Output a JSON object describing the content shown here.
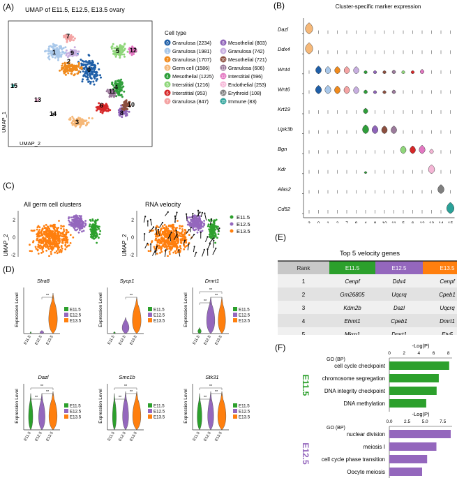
{
  "panel_labels": {
    "a": "(A)",
    "b": "(B)",
    "c": "(C)",
    "d": "(D)",
    "e": "(E)",
    "f": "(F)"
  },
  "umap": {
    "title": "UMAP of  E11.5, E12.5, E13.5  ovary",
    "xlabel": "UMAP_2",
    "ylabel": "UMAP_1",
    "legend_title": "Cell type",
    "legend": [
      {
        "id": "0",
        "label": "Granulosa (2234)",
        "color": "#1f5fa8"
      },
      {
        "id": "1",
        "label": "Granulosa (1981)",
        "color": "#a9c8ea"
      },
      {
        "id": "2",
        "label": "Granulosa (1707)",
        "color": "#f08a1c"
      },
      {
        "id": "3",
        "label": "Germ cell (1586)",
        "color": "#f6b878"
      },
      {
        "id": "4",
        "label": "Mesothelial (1225)",
        "color": "#2e9e3a"
      },
      {
        "id": "5",
        "label": "Interstitial (1216)",
        "color": "#8fd67a"
      },
      {
        "id": "6",
        "label": "Interstitial (953)",
        "color": "#d62728"
      },
      {
        "id": "7",
        "label": "Granulosa (847)",
        "color": "#f4a3a3"
      },
      {
        "id": "8",
        "label": "Mesothelial (803)",
        "color": "#8e63b8"
      },
      {
        "id": "9",
        "label": "Granulosa (742)",
        "color": "#c7aee0"
      },
      {
        "id": "10",
        "label": "Mesothelial (721)",
        "color": "#8c4f3f"
      },
      {
        "id": "11",
        "label": "Granulosa (606)",
        "color": "#9b7a9b"
      },
      {
        "id": "12",
        "label": "Interstitial (596)",
        "color": "#e377c2"
      },
      {
        "id": "13",
        "label": "Endothelial (253)",
        "color": "#f5b6d6"
      },
      {
        "id": "14",
        "label": "Erythroid (108)",
        "color": "#7f7f7f"
      },
      {
        "id": "15",
        "label": "Immune (83)",
        "color": "#2aa198"
      }
    ]
  },
  "markers": {
    "title": "Cluster-specific marker expression",
    "genes": [
      "Dazl",
      "Ddx4",
      "Wnt4",
      "Wnt6",
      "Krt19",
      "Upk3b",
      "Bgn",
      "Kdr",
      "Alas2",
      "Cd52"
    ],
    "clusters": [
      "3",
      "0",
      "1",
      "2",
      "7",
      "9",
      "4",
      "8",
      "10",
      "11",
      "5",
      "6",
      "12",
      "13",
      "14",
      "15"
    ]
  },
  "velocity": {
    "title_left": "All germ cell clusters",
    "title_right": "RNA velocity",
    "xlabel": "UMAP_1",
    "ylabel": "UMAP_2",
    "yticks": [
      "2",
      "0",
      "-2"
    ],
    "xticks": [
      "-6",
      "-3",
      "0",
      "3",
      "6"
    ],
    "legend": [
      {
        "label": "E11.5",
        "color": "#2ca02c"
      },
      {
        "label": "E12.5",
        "color": "#9467bd"
      },
      {
        "label": "E13.5",
        "color": "#ff7f0e"
      }
    ]
  },
  "violins": {
    "ylabel": "Expression Level",
    "xticks": [
      "E11.5",
      "E12.5",
      "E13.5"
    ],
    "sig": "**",
    "genes": [
      "Stra8",
      "Sycp1",
      "Dmrt1",
      "Dazl",
      "Smc1b",
      "Stk31"
    ]
  },
  "table": {
    "title": "Top 5 velocity genes",
    "headers": [
      "Rank",
      "E11.5",
      "E12.5",
      "E13.5"
    ],
    "rows": [
      [
        "1",
        "Cenpf",
        "Ddx4",
        "Cenpf"
      ],
      [
        "2",
        "Gm26805",
        "Uqcrq",
        "Cpeb1"
      ],
      [
        "3",
        "Kdm2b",
        "Dazl",
        "Uqcrq"
      ],
      [
        "4",
        "Ehmt1",
        "Cpeb1",
        "Dmrt1"
      ],
      [
        "5",
        "Mkrn1",
        "Dmrt1",
        "Etv5"
      ]
    ]
  },
  "chart_data": [
    {
      "type": "bar",
      "title": "E11.5",
      "xlabel": "-Log(P)",
      "ylabel": "GO (BP)",
      "xticks": [
        "0",
        "2",
        "4",
        "6",
        "8"
      ],
      "xlim": [
        0,
        8.5
      ],
      "categories": [
        "cell cycle checkpoint",
        "chromosome segregation",
        "DNA integrity checkpoint",
        "DNA methylation"
      ],
      "values": [
        8.1,
        6.7,
        6.4,
        5.0
      ],
      "color": "#2ca02c"
    },
    {
      "type": "bar",
      "title": "E12.5",
      "xlabel": "-Log(P)",
      "ylabel": "GO (BP)",
      "xticks": [
        "0.0",
        "2.5",
        "5.0",
        "7.5"
      ],
      "xlim": [
        0,
        8.8
      ],
      "categories": [
        "nuclear division",
        "meiosis I",
        "cell cycle phase transition",
        "Oocyte meiosis"
      ],
      "values": [
        8.6,
        6.6,
        5.3,
        4.6
      ],
      "color": "#9467bd"
    }
  ]
}
